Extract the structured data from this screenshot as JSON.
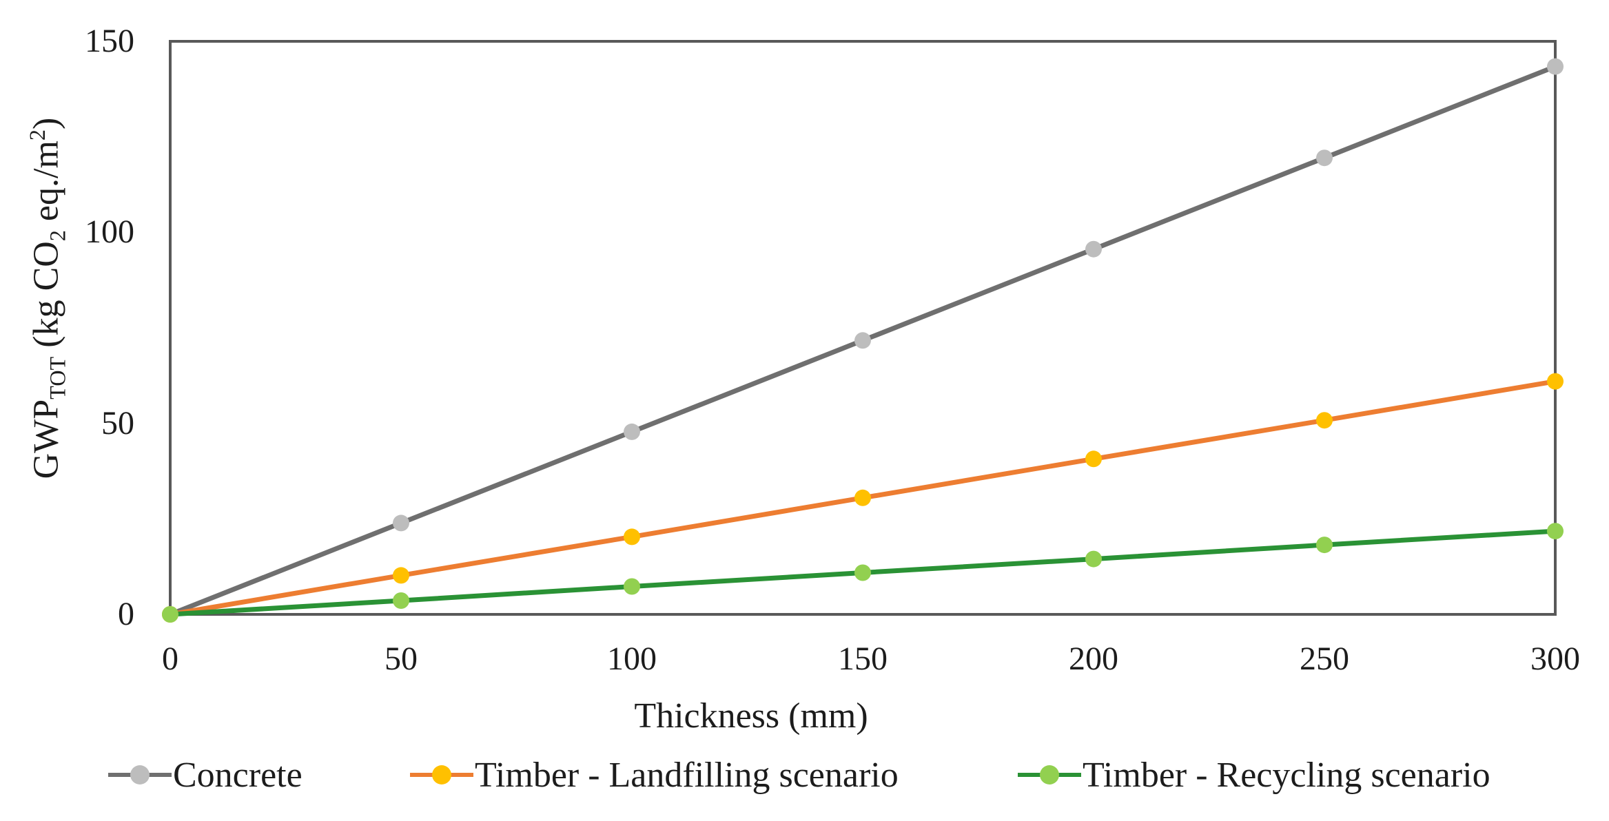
{
  "chart_data": {
    "type": "line",
    "title": "",
    "xlabel": "Thickness (mm)",
    "ylabel": "GWP TOT (kg CO2 eq./m2)",
    "ylabel_parts": [
      {
        "text": "GWP"
      },
      {
        "text": "TOT",
        "style": "sub"
      },
      {
        "text": " (kg CO"
      },
      {
        "text": "2",
        "style": "sub"
      },
      {
        "text": " eq./m"
      },
      {
        "text": "2",
        "style": "sup"
      },
      {
        "text": ")"
      }
    ],
    "x": [
      0,
      50,
      100,
      150,
      200,
      250,
      300
    ],
    "x_ticks": [
      "0",
      "50",
      "100",
      "150",
      "200",
      "250",
      "300"
    ],
    "y_ticks": [
      "0",
      "50",
      "100",
      "150"
    ],
    "xlim": [
      0,
      300
    ],
    "ylim": [
      0,
      150
    ],
    "grid": false,
    "legend_position": "bottom",
    "series": [
      {
        "name": "Concrete",
        "values": [
          0,
          23.9,
          47.8,
          71.7,
          95.6,
          119.5,
          143.4
        ],
        "line_color": "#6f6f6f",
        "marker_color": "#bdbdbd"
      },
      {
        "name": "Timber - Landfilling scenario",
        "values": [
          0,
          10.2,
          20.3,
          30.5,
          40.7,
          50.8,
          61.0
        ],
        "line_color": "#ed7d31",
        "marker_color": "#ffc000"
      },
      {
        "name": "Timber - Recycling scenario",
        "values": [
          0,
          3.6,
          7.3,
          10.9,
          14.5,
          18.2,
          21.8
        ],
        "line_color": "#2a9235",
        "marker_color": "#92d050"
      }
    ]
  },
  "colors": {
    "axis_frame": "#595959",
    "text": "#1c1c1c",
    "background": "#ffffff"
  }
}
